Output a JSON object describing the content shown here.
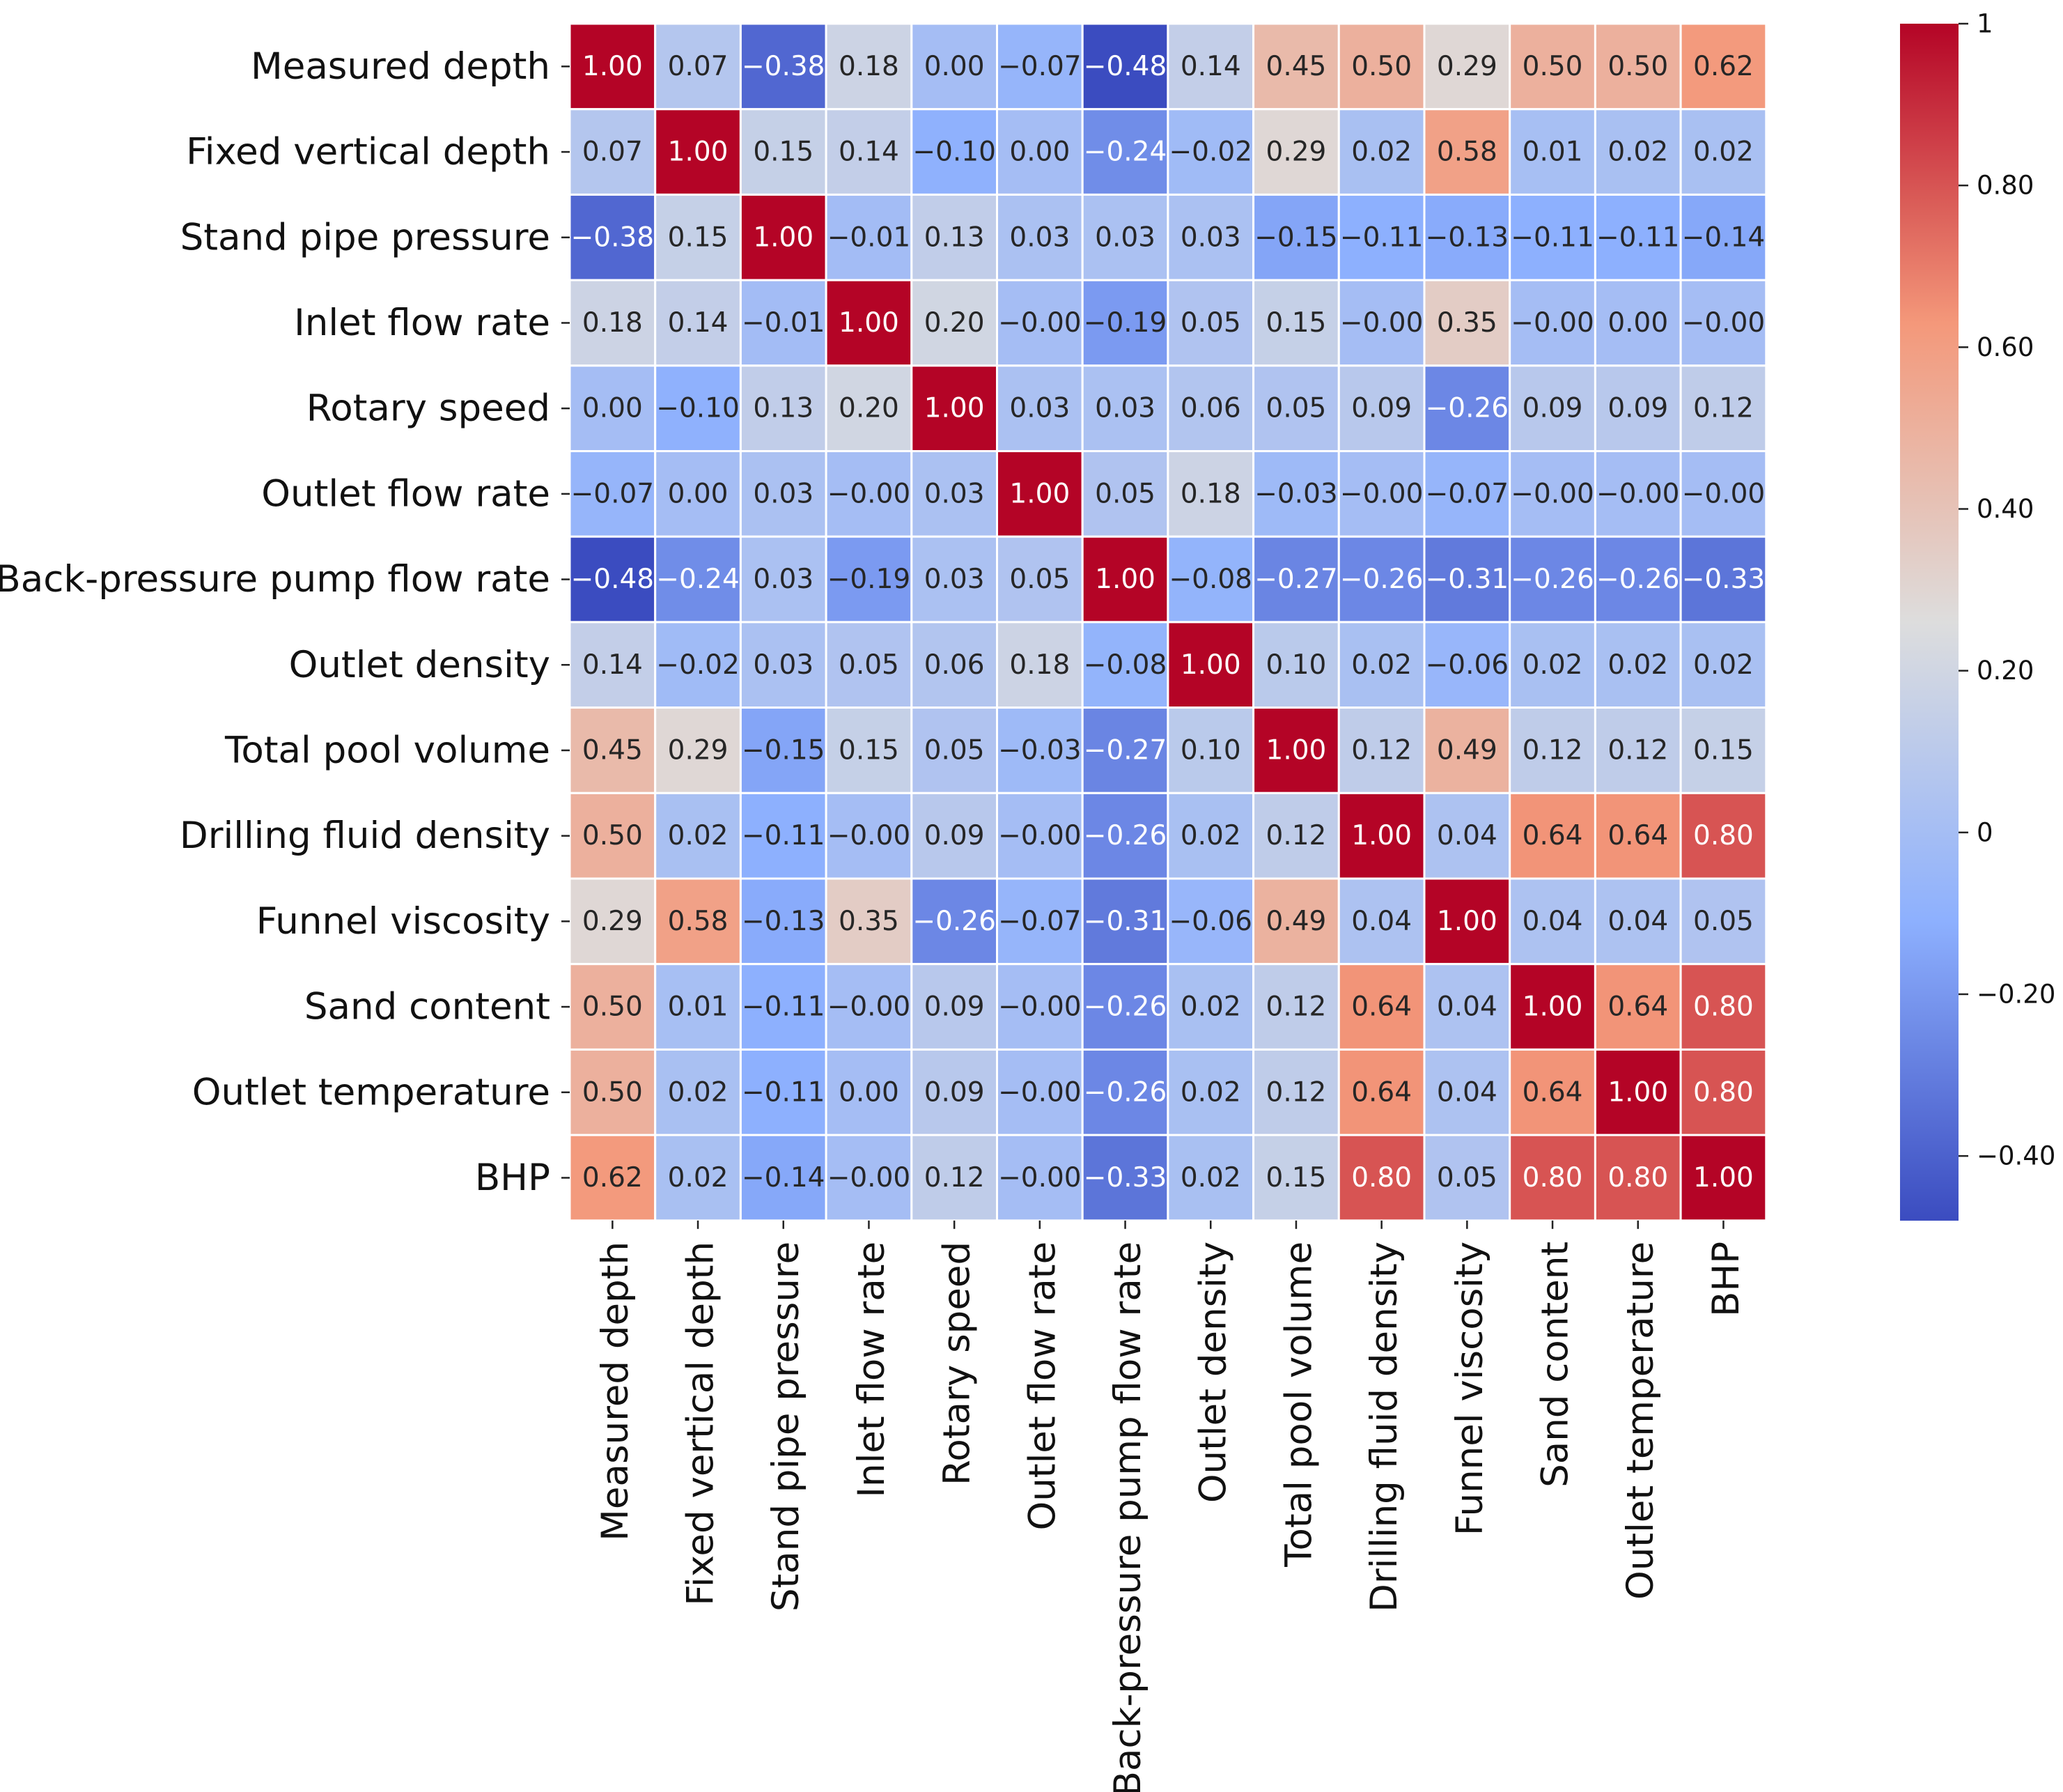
{
  "chart_data": {
    "type": "heatmap",
    "title": "",
    "colormap": "coolwarm",
    "vmin": -0.48,
    "vmax": 1.0,
    "labels": [
      "Measured depth",
      "Fixed vertical depth",
      "Stand pipe pressure",
      "Inlet flow rate",
      "Rotary speed",
      "Outlet flow rate",
      "Back-pressure pump flow rate",
      "Outlet density",
      "Total pool volume",
      "Drilling fluid density",
      "Funnel viscosity",
      "Sand content",
      "Outlet temperature",
      "BHP"
    ],
    "matrix": [
      [
        1.0,
        0.07,
        -0.38,
        0.18,
        0.0,
        -0.07,
        -0.48,
        0.14,
        0.45,
        0.5,
        0.29,
        0.5,
        0.5,
        0.62
      ],
      [
        0.07,
        1.0,
        0.15,
        0.14,
        -0.1,
        0.0,
        -0.24,
        -0.02,
        0.29,
        0.02,
        0.58,
        0.01,
        0.02,
        0.02
      ],
      [
        -0.38,
        0.15,
        1.0,
        -0.01,
        0.13,
        0.03,
        0.03,
        0.03,
        -0.15,
        -0.11,
        -0.13,
        -0.11,
        -0.11,
        -0.14
      ],
      [
        0.18,
        0.14,
        -0.01,
        1.0,
        0.2,
        -0.0,
        -0.19,
        0.05,
        0.15,
        -0.0,
        0.35,
        -0.0,
        0.0,
        -0.0
      ],
      [
        0.0,
        -0.1,
        0.13,
        0.2,
        1.0,
        0.03,
        0.03,
        0.06,
        0.05,
        0.09,
        -0.26,
        0.09,
        0.09,
        0.12
      ],
      [
        -0.07,
        0.0,
        0.03,
        -0.0,
        0.03,
        1.0,
        0.05,
        0.18,
        -0.03,
        -0.0,
        -0.07,
        -0.0,
        -0.0,
        -0.0
      ],
      [
        -0.48,
        -0.24,
        0.03,
        -0.19,
        0.03,
        0.05,
        1.0,
        -0.08,
        -0.27,
        -0.26,
        -0.31,
        -0.26,
        -0.26,
        -0.33
      ],
      [
        0.14,
        -0.02,
        0.03,
        0.05,
        0.06,
        0.18,
        -0.08,
        1.0,
        0.1,
        0.02,
        -0.06,
        0.02,
        0.02,
        0.02
      ],
      [
        0.45,
        0.29,
        -0.15,
        0.15,
        0.05,
        -0.03,
        -0.27,
        0.1,
        1.0,
        0.12,
        0.49,
        0.12,
        0.12,
        0.15
      ],
      [
        0.5,
        0.02,
        -0.11,
        -0.0,
        0.09,
        -0.0,
        -0.26,
        0.02,
        0.12,
        1.0,
        0.04,
        0.64,
        0.64,
        0.8
      ],
      [
        0.29,
        0.58,
        -0.13,
        0.35,
        -0.26,
        -0.07,
        -0.31,
        -0.06,
        0.49,
        0.04,
        1.0,
        0.04,
        0.04,
        0.05
      ],
      [
        0.5,
        0.01,
        -0.11,
        -0.0,
        0.09,
        -0.0,
        -0.26,
        0.02,
        0.12,
        0.64,
        0.04,
        1.0,
        0.64,
        0.8
      ],
      [
        0.5,
        0.02,
        -0.11,
        0.0,
        0.09,
        -0.0,
        -0.26,
        0.02,
        0.12,
        0.64,
        0.04,
        0.64,
        1.0,
        0.8
      ],
      [
        0.62,
        0.02,
        -0.14,
        -0.0,
        0.12,
        -0.0,
        -0.33,
        0.02,
        0.15,
        0.8,
        0.05,
        0.8,
        0.8,
        1.0
      ]
    ],
    "annotations": [
      [
        "1.00",
        "0.07",
        "−0.38",
        "0.18",
        "0.00",
        "−0.07",
        "−0.48",
        "0.14",
        "0.45",
        "0.50",
        "0.29",
        "0.50",
        "0.50",
        "0.62"
      ],
      [
        "0.07",
        "1.00",
        "0.15",
        "0.14",
        "−0.10",
        "0.00",
        "−0.24",
        "−0.02",
        "0.29",
        "0.02",
        "0.58",
        "0.01",
        "0.02",
        "0.02"
      ],
      [
        "−0.38",
        "0.15",
        "1.00",
        "−0.01",
        "0.13",
        "0.03",
        "0.03",
        "0.03",
        "−0.15",
        "−0.11",
        "−0.13",
        "−0.11",
        "−0.11",
        "−0.14"
      ],
      [
        "0.18",
        "0.14",
        "−0.01",
        "1.00",
        "0.20",
        "−0.00",
        "−0.19",
        "0.05",
        "0.15",
        "−0.00",
        "0.35",
        "−0.00",
        "0.00",
        "−0.00"
      ],
      [
        "0.00",
        "−0.10",
        "0.13",
        "0.20",
        "1.00",
        "0.03",
        "0.03",
        "0.06",
        "0.05",
        "0.09",
        "−0.26",
        "0.09",
        "0.09",
        "0.12"
      ],
      [
        "−0.07",
        "0.00",
        "0.03",
        "−0.00",
        "0.03",
        "1.00",
        "0.05",
        "0.18",
        "−0.03",
        "−0.00",
        "−0.07",
        "−0.00",
        "−0.00",
        "−0.00"
      ],
      [
        "−0.48",
        "−0.24",
        "0.03",
        "−0.19",
        "0.03",
        "0.05",
        "1.00",
        "−0.08",
        "−0.27",
        "−0.26",
        "−0.31",
        "−0.26",
        "−0.26",
        "−0.33"
      ],
      [
        "0.14",
        "−0.02",
        "0.03",
        "0.05",
        "0.06",
        "0.18",
        "−0.08",
        "1.00",
        "0.10",
        "0.02",
        "−0.06",
        "0.02",
        "0.02",
        "0.02"
      ],
      [
        "0.45",
        "0.29",
        "−0.15",
        "0.15",
        "0.05",
        "−0.03",
        "−0.27",
        "0.10",
        "1.00",
        "0.12",
        "0.49",
        "0.12",
        "0.12",
        "0.15"
      ],
      [
        "0.50",
        "0.02",
        "−0.11",
        "−0.00",
        "0.09",
        "−0.00",
        "−0.26",
        "0.02",
        "0.12",
        "1.00",
        "0.04",
        "0.64",
        "0.64",
        "0.80"
      ],
      [
        "0.29",
        "0.58",
        "−0.13",
        "0.35",
        "−0.26",
        "−0.07",
        "−0.31",
        "−0.06",
        "0.49",
        "0.04",
        "1.00",
        "0.04",
        "0.04",
        "0.05"
      ],
      [
        "0.50",
        "0.01",
        "−0.11",
        "−0.00",
        "0.09",
        "−0.00",
        "−0.26",
        "0.02",
        "0.12",
        "0.64",
        "0.04",
        "1.00",
        "0.64",
        "0.80"
      ],
      [
        "0.50",
        "0.02",
        "−0.11",
        "0.00",
        "0.09",
        "−0.00",
        "−0.26",
        "0.02",
        "0.12",
        "0.64",
        "0.04",
        "0.64",
        "1.00",
        "0.80"
      ],
      [
        "0.62",
        "0.02",
        "−0.14",
        "−0.00",
        "0.12",
        "−0.00",
        "−0.33",
        "0.02",
        "0.15",
        "0.80",
        "0.05",
        "0.80",
        "0.80",
        "1.00"
      ]
    ],
    "colorbar": {
      "ticks": [
        1.0,
        0.8,
        0.6,
        0.4,
        0.2,
        0.0,
        -0.2,
        -0.4
      ],
      "tick_labels": [
        "1",
        "0.80",
        "0.60",
        "0.40",
        "0.20",
        "0",
        "−0.20",
        "−0.40"
      ]
    },
    "grid_line_color": "#ffffff"
  }
}
